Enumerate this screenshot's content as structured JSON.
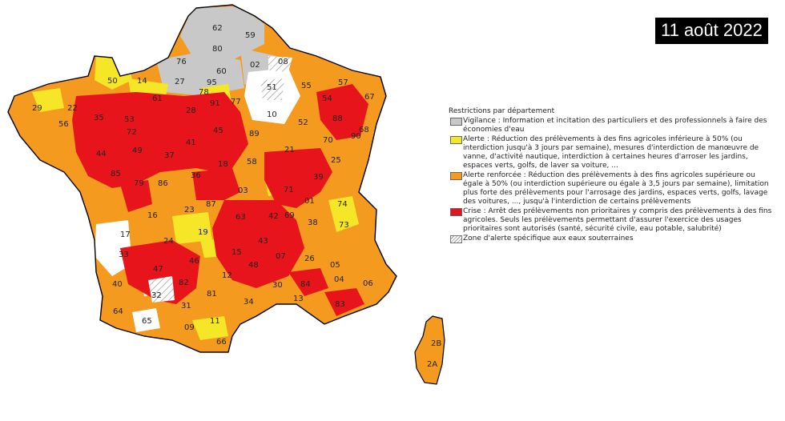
{
  "date_label": "11 août 2022",
  "legend": {
    "title": "Restrictions par département",
    "items": [
      {
        "key": "vigilance",
        "color": "#c8c8c8",
        "text": "Vigilance : Information et incitation des particuliers et des professionnels à faire des économies d'eau"
      },
      {
        "key": "alerte",
        "color": "#f5e627",
        "text": "Alerte : Réduction des prélèvements à des fins agricoles inférieure à 50% (ou interdiction jusqu'à 3 jours par semaine), mesures d'interdiction de manœuvre de vanne, d'activité nautique, interdiction à certaines heures d'arroser les jardins, espaces verts, golfs, de laver sa voiture, ..."
      },
      {
        "key": "alerte_renforcee",
        "color": "#f39a1f",
        "text": "Alerte renforcée : Réduction des prélèvements à des fins agricoles supérieure ou égale à 50% (ou interdiction supérieure ou égale à 3,5 jours par semaine), limitation plus forte des prélèvements pour l'arrosage des jardins, espaces verts, golfs, lavage des voitures, ..., jusqu'à l'interdiction de certains prélèvements"
      },
      {
        "key": "crise",
        "color": "#e8141c",
        "text": "Crise : Arrêt des prélèvements non prioritaires y compris des prélèvements à des fins agricoles. Seuls les prélèvements permettant d'assurer l'exercice des usages prioritaires sont autorisés (santé, sécurité civile, eau potable, salubrité)"
      },
      {
        "key": "souterraine",
        "color": "hatch",
        "text": "Zone d'alerte spécifique aux eaux souterraines"
      }
    ]
  },
  "map": {
    "region": "France métropolitaine",
    "departments": [
      "62",
      "59",
      "80",
      "76",
      "60",
      "02",
      "08",
      "50",
      "14",
      "27",
      "95",
      "78",
      "91",
      "77",
      "51",
      "55",
      "57",
      "67",
      "29",
      "22",
      "56",
      "35",
      "53",
      "61",
      "28",
      "45",
      "10",
      "52",
      "54",
      "88",
      "68",
      "44",
      "49",
      "72",
      "37",
      "41",
      "89",
      "21",
      "70",
      "90",
      "18",
      "58",
      "39",
      "25",
      "85",
      "79",
      "86",
      "36",
      "03",
      "71",
      "01",
      "74",
      "16",
      "23",
      "87",
      "63",
      "42",
      "69",
      "38",
      "73",
      "17",
      "19",
      "15",
      "43",
      "07",
      "26",
      "05",
      "04",
      "06",
      "33",
      "24",
      "47",
      "46",
      "12",
      "48",
      "30",
      "84",
      "13",
      "83",
      "40",
      "32",
      "82",
      "81",
      "34",
      "64",
      "65",
      "31",
      "09",
      "11",
      "66",
      "2B",
      "2A"
    ]
  }
}
